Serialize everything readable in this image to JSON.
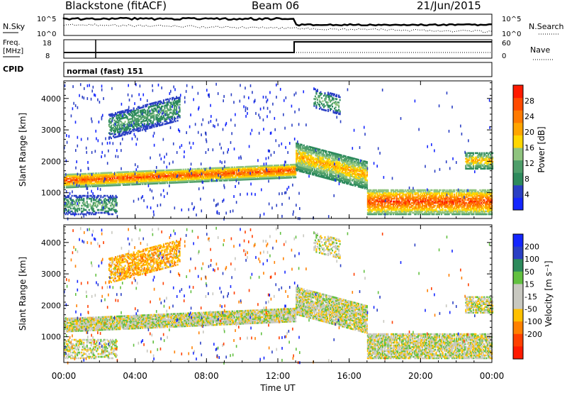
{
  "header": {
    "station": "Blackstone (fitACF)",
    "beam": "Beam 06",
    "date": "21/Jun/2015"
  },
  "noise_panel": {
    "left_label": "N.Sky",
    "right_label": "N.Search",
    "left_ticks": [
      "10^5",
      "10^0"
    ],
    "right_ticks": [
      "10^5",
      "10^0"
    ]
  },
  "freq_panel": {
    "left_label_1": "Freq.",
    "left_label_2": "[MHz]",
    "right_label": "Nave",
    "left_ticks": [
      "18",
      "8"
    ],
    "right_ticks": [
      "60",
      "0"
    ]
  },
  "cpid": {
    "label": "CPID",
    "value": "normal (fast) 151"
  },
  "colors": {
    "power_scale": [
      "#1426ff",
      "#2a3fc4",
      "#2d8a5c",
      "#4e9e6a",
      "#8fc47f",
      "#ffd700",
      "#ffa500",
      "#ff7a00",
      "#ff4a00",
      "#ff1a00"
    ],
    "velocity_scale": [
      "#1426ff",
      "#2a3fc4",
      "#2d8a5c",
      "#62c040",
      "#c8c8c0",
      "#c8c8c0",
      "#ffc000",
      "#ff8000",
      "#ff4000",
      "#ff1a00"
    ]
  },
  "chart_data": [
    {
      "type": "heatmap",
      "name": "power",
      "xlabel": "",
      "ylabel": "Slant Range [km]",
      "colorbar_label": "Power [dB]",
      "colorbar_ticks": [
        28,
        24,
        20,
        16,
        12,
        8,
        4
      ],
      "colorbar_range": [
        0,
        32
      ],
      "x_ticks": [
        "00:00",
        "04:00",
        "08:00",
        "12:00",
        "16:00",
        "20:00",
        "00:00"
      ],
      "y_ticks": [
        1000,
        2000,
        3000,
        4000
      ],
      "xlim": [
        0,
        24
      ],
      "ylim": [
        180,
        4560
      ]
    },
    {
      "type": "heatmap",
      "name": "velocity",
      "xlabel": "Time UT",
      "ylabel": "Slant Range [km]",
      "colorbar_label": "Velocity [m s⁻¹]",
      "colorbar_ticks": [
        "200",
        "100",
        "50",
        "15",
        "-15",
        "-50",
        "-100",
        "-200"
      ],
      "x_ticks": [
        "00:00",
        "04:00",
        "08:00",
        "12:00",
        "16:00",
        "20:00",
        "00:00"
      ],
      "y_ticks": [
        1000,
        2000,
        3000,
        4000
      ],
      "xlim": [
        0,
        24
      ],
      "ylim": [
        180,
        4560
      ]
    }
  ]
}
